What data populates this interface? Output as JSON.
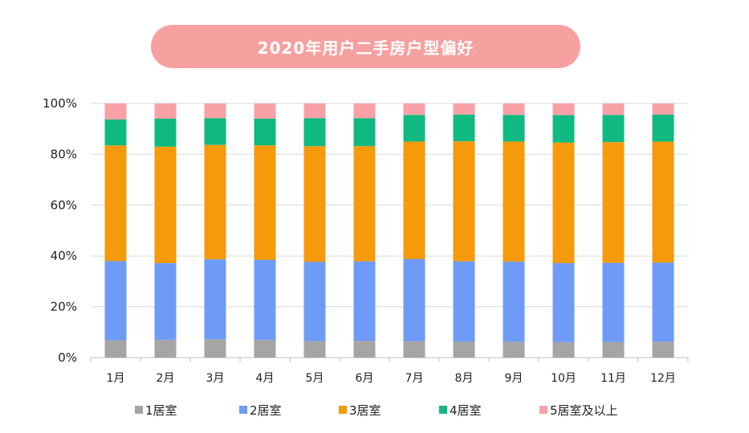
{
  "chart_data": {
    "type": "bar",
    "stacked": true,
    "title": "2020年用户二手房户型偏好",
    "categories": [
      "1月",
      "2月",
      "3月",
      "4月",
      "5月",
      "6月",
      "7月",
      "8月",
      "9月",
      "10月",
      "11月",
      "12月"
    ],
    "y_ticks": [
      "0%",
      "20%",
      "40%",
      "60%",
      "80%",
      "100%"
    ],
    "ylim": [
      0,
      100
    ],
    "grid": true,
    "legend_position": "bottom",
    "series": [
      {
        "name": "1居室",
        "color": "#a5a5a5",
        "values": [
          6.8,
          7.0,
          7.2,
          7.0,
          6.5,
          6.6,
          6.5,
          6.3,
          6.2,
          6.1,
          6.1,
          6.2
        ]
      },
      {
        "name": "2居室",
        "color": "#6e9bf5",
        "values": [
          31.2,
          30.2,
          31.5,
          31.5,
          31.2,
          31.3,
          32.3,
          31.6,
          31.6,
          31.1,
          31.2,
          31.2
        ]
      },
      {
        "name": "3居室",
        "color": "#f59a0a",
        "values": [
          45.5,
          45.8,
          45.0,
          45.0,
          45.5,
          45.3,
          46.2,
          47.2,
          47.2,
          47.4,
          47.5,
          47.6
        ]
      },
      {
        "name": "4居室",
        "color": "#10b981",
        "values": [
          10.2,
          11.0,
          10.5,
          10.5,
          11.0,
          11.0,
          10.5,
          10.5,
          10.5,
          10.8,
          10.7,
          10.6
        ]
      },
      {
        "name": "5居室及以上",
        "color": "#f8a1a6",
        "values": [
          6.3,
          6.0,
          5.8,
          6.0,
          5.8,
          5.8,
          4.5,
          4.4,
          4.5,
          4.6,
          4.5,
          4.4
        ]
      }
    ]
  }
}
